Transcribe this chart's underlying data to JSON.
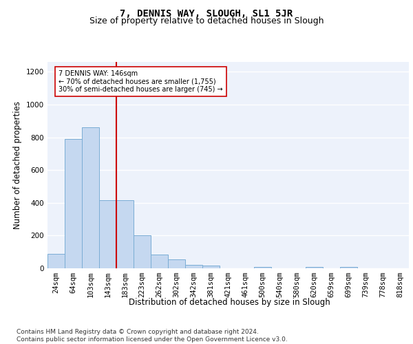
{
  "title_line1": "7, DENNIS WAY, SLOUGH, SL1 5JR",
  "title_line2": "Size of property relative to detached houses in Slough",
  "xlabel": "Distribution of detached houses by size in Slough",
  "ylabel": "Number of detached properties",
  "categories": [
    "24sqm",
    "64sqm",
    "103sqm",
    "143sqm",
    "183sqm",
    "223sqm",
    "262sqm",
    "302sqm",
    "342sqm",
    "381sqm",
    "421sqm",
    "461sqm",
    "500sqm",
    "540sqm",
    "580sqm",
    "620sqm",
    "659sqm",
    "699sqm",
    "739sqm",
    "778sqm",
    "818sqm"
  ],
  "values": [
    90,
    790,
    860,
    415,
    415,
    200,
    85,
    55,
    20,
    15,
    0,
    0,
    10,
    0,
    0,
    10,
    0,
    10,
    0,
    0,
    0
  ],
  "bar_color": "#c5d8f0",
  "bar_edge_color": "#7aadd4",
  "red_line_color": "#cc0000",
  "annotation_text": "7 DENNIS WAY: 146sqm\n← 70% of detached houses are smaller (1,755)\n30% of semi-detached houses are larger (745) →",
  "annotation_box_color": "#ffffff",
  "annotation_box_edge": "#cc0000",
  "ylim": [
    0,
    1260
  ],
  "yticks": [
    0,
    200,
    400,
    600,
    800,
    1000,
    1200
  ],
  "footer": "Contains HM Land Registry data © Crown copyright and database right 2024.\nContains public sector information licensed under the Open Government Licence v3.0.",
  "bg_color": "#edf2fb",
  "grid_color": "#ffffff",
  "title_fontsize": 10,
  "subtitle_fontsize": 9,
  "axis_label_fontsize": 8.5,
  "tick_fontsize": 7.5,
  "footer_fontsize": 6.5
}
